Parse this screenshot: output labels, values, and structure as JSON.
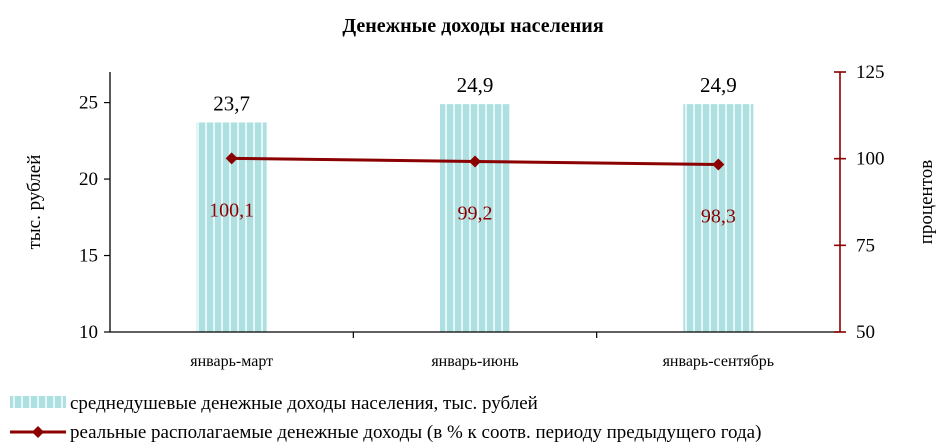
{
  "chart_data": {
    "type": "bar",
    "title": "Денежные доходы населения",
    "categories": [
      "январь-март",
      "январь-июнь",
      "январь-сентябрь"
    ],
    "series": [
      {
        "name": "среднедушевые денежные доходы населения, тыс. рублей",
        "kind": "bar",
        "axis": "left",
        "values": [
          23.7,
          24.9,
          24.9
        ],
        "labels": [
          "23,7",
          "24,9",
          "24,9"
        ]
      },
      {
        "name": "реальные располагаемые денежные доходы (в % к соотв. периоду предыдущего года)",
        "kind": "line",
        "axis": "right",
        "values": [
          100.1,
          99.2,
          98.3
        ],
        "labels": [
          "100,1",
          "99,2",
          "98,3"
        ]
      }
    ],
    "y_left": {
      "label": "тыс. рублей",
      "min": 10,
      "max": 27,
      "ticks": [
        10,
        15,
        20,
        25
      ]
    },
    "y_right": {
      "label": "процентов",
      "min": 50,
      "max": 125,
      "ticks": [
        50,
        75,
        100,
        125
      ]
    },
    "grid": false,
    "legend_position": "bottom-left",
    "colors": {
      "bar": "#aee0e2",
      "bar_stripe": "#e4f6f6",
      "line": "#8b0000",
      "axis": "#000000",
      "right_axis": "#8b0000"
    }
  }
}
